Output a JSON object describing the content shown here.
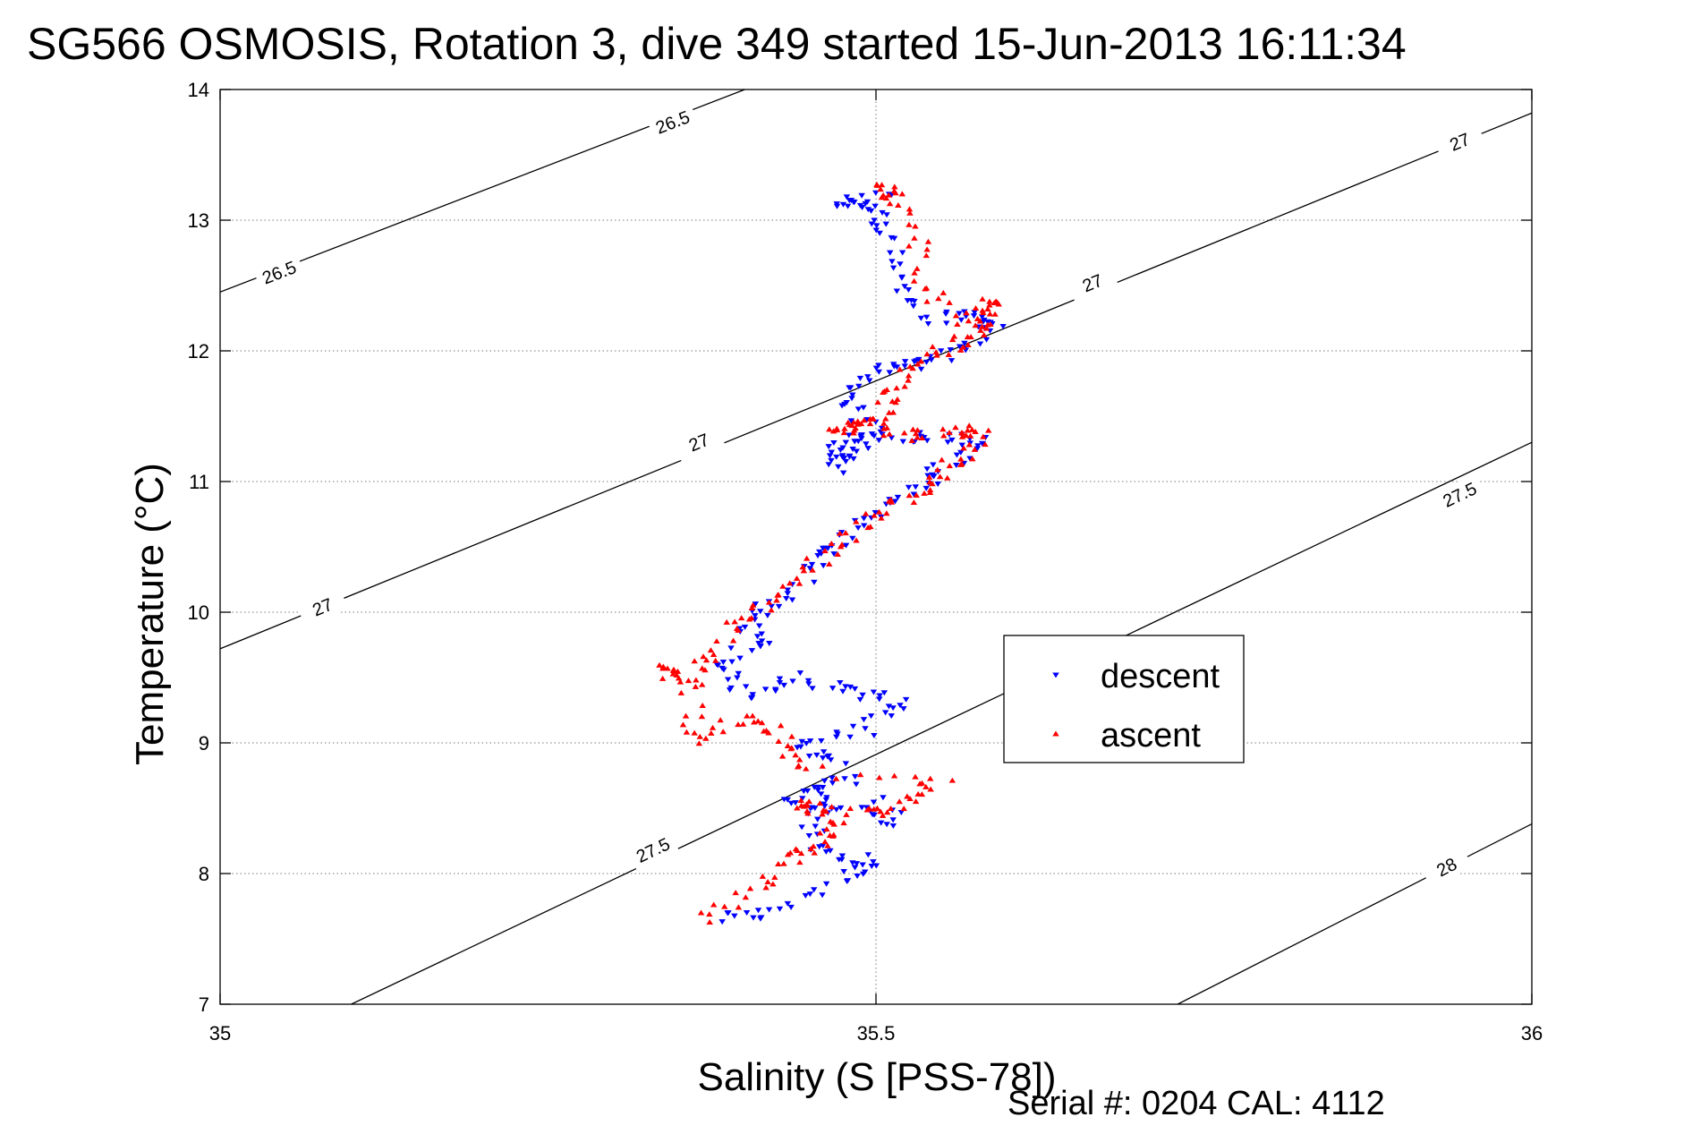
{
  "chart_data": {
    "type": "scatter",
    "title": "SG566 OSMOSIS, Rotation 3, dive 349 started 15-Jun-2013 16:11:34",
    "xlabel": "Salinity (S [PSS-78])",
    "ylabel": "Temperature (°C)",
    "xlim": [
      35,
      36
    ],
    "ylim": [
      7,
      14
    ],
    "xticks": [
      35,
      35.5,
      36
    ],
    "xtick_labels": [
      "35",
      "35.5",
      "36"
    ],
    "yticks": [
      7,
      8,
      9,
      10,
      11,
      12,
      13,
      14
    ],
    "ytick_labels": [
      "7",
      "8",
      "9",
      "10",
      "11",
      "12",
      "13",
      "14"
    ],
    "grid": true,
    "legend_position": "center-right",
    "footnote": "Serial #: 0204  CAL: 4112",
    "contours": [
      {
        "label": "26.5",
        "points": [
          [
            35,
            12.45
          ],
          [
            35.4,
            14.0
          ]
        ],
        "label_positions": [
          [
            35.045,
            12.6
          ],
          [
            35.345,
            13.75
          ]
        ]
      },
      {
        "label": "27",
        "points": [
          [
            35,
            9.72
          ],
          [
            36,
            13.82
          ]
        ],
        "label_positions": [
          [
            35.078,
            10.04
          ],
          [
            35.365,
            11.3
          ],
          [
            35.665,
            12.52
          ],
          [
            35.945,
            13.6
          ]
        ]
      },
      {
        "label": "27.5",
        "points": [
          [
            35.1,
            7.0
          ],
          [
            36,
            11.3
          ]
        ],
        "label_positions": [
          [
            35.33,
            8.18
          ],
          [
            35.945,
            10.9
          ]
        ]
      },
      {
        "label": "28",
        "points": [
          [
            35.73,
            7.0
          ],
          [
            36,
            8.38
          ]
        ],
        "label_positions": [
          [
            35.935,
            8.05
          ]
        ]
      }
    ],
    "series": [
      {
        "name": "descent",
        "color": "#0000ff",
        "marker": "triangle-down",
        "path": [
          [
            35.38,
            7.65
          ],
          [
            35.42,
            7.7
          ],
          [
            35.47,
            7.95
          ],
          [
            35.5,
            8.1
          ],
          [
            35.46,
            8.15
          ],
          [
            35.45,
            8.4
          ],
          [
            35.47,
            8.7
          ],
          [
            35.43,
            8.55
          ],
          [
            35.48,
            8.5
          ],
          [
            35.52,
            8.4
          ],
          [
            35.47,
            8.85
          ],
          [
            35.44,
            9.0
          ],
          [
            35.49,
            9.1
          ],
          [
            35.52,
            9.3
          ],
          [
            35.48,
            9.4
          ],
          [
            35.44,
            9.5
          ],
          [
            35.4,
            9.35
          ],
          [
            35.38,
            9.6
          ],
          [
            35.41,
            9.75
          ],
          [
            35.4,
            9.95
          ],
          [
            35.43,
            10.1
          ],
          [
            35.46,
            10.4
          ],
          [
            35.47,
            10.55
          ],
          [
            35.5,
            10.75
          ],
          [
            35.53,
            10.95
          ],
          [
            35.55,
            11.1
          ],
          [
            35.58,
            11.3
          ],
          [
            35.55,
            11.35
          ],
          [
            35.51,
            11.35
          ],
          [
            35.48,
            11.25
          ],
          [
            35.47,
            11.1
          ],
          [
            35.47,
            11.3
          ],
          [
            35.5,
            11.4
          ],
          [
            35.47,
            11.65
          ],
          [
            35.5,
            11.85
          ],
          [
            35.53,
            11.9
          ],
          [
            35.56,
            12.0
          ],
          [
            35.59,
            12.2
          ],
          [
            35.57,
            12.28
          ],
          [
            35.54,
            12.25
          ],
          [
            35.52,
            12.55
          ],
          [
            35.51,
            12.9
          ],
          [
            35.5,
            13.1
          ],
          [
            35.47,
            13.15
          ],
          [
            35.51,
            13.2
          ]
        ]
      },
      {
        "name": "ascent",
        "color": "#ff0000",
        "marker": "triangle-up",
        "path": [
          [
            35.37,
            7.65
          ],
          [
            35.41,
            7.9
          ],
          [
            35.44,
            8.15
          ],
          [
            35.46,
            8.25
          ],
          [
            35.47,
            8.45
          ],
          [
            35.44,
            8.55
          ],
          [
            35.49,
            8.45
          ],
          [
            35.52,
            8.55
          ],
          [
            35.55,
            8.7
          ],
          [
            35.44,
            8.8
          ],
          [
            35.43,
            9.05
          ],
          [
            35.4,
            9.2
          ],
          [
            35.36,
            9.0
          ],
          [
            35.36,
            9.45
          ],
          [
            35.34,
            9.55
          ],
          [
            35.37,
            9.6
          ],
          [
            35.39,
            9.9
          ],
          [
            35.42,
            10.1
          ],
          [
            35.45,
            10.35
          ],
          [
            35.48,
            10.6
          ],
          [
            35.51,
            10.8
          ],
          [
            35.54,
            10.95
          ],
          [
            35.56,
            11.15
          ],
          [
            35.58,
            11.35
          ],
          [
            35.56,
            11.4
          ],
          [
            35.53,
            11.35
          ],
          [
            35.49,
            11.45
          ],
          [
            35.47,
            11.4
          ],
          [
            35.5,
            11.45
          ],
          [
            35.51,
            11.65
          ],
          [
            35.53,
            11.9
          ],
          [
            35.56,
            12.05
          ],
          [
            35.58,
            12.2
          ],
          [
            35.59,
            12.4
          ],
          [
            35.57,
            12.2
          ],
          [
            35.54,
            12.45
          ],
          [
            35.53,
            12.9
          ],
          [
            35.5,
            13.25
          ],
          [
            35.52,
            13.2
          ]
        ]
      }
    ]
  }
}
